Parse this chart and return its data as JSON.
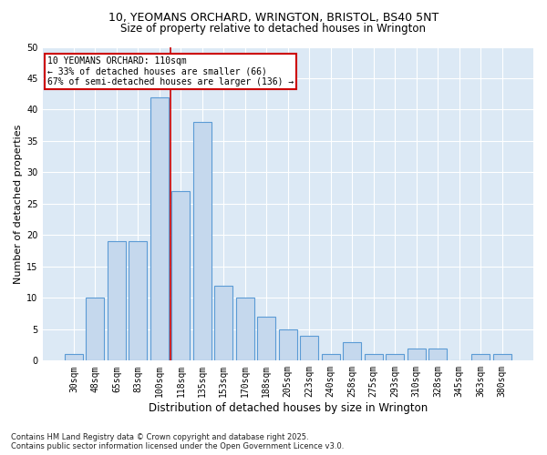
{
  "title1": "10, YEOMANS ORCHARD, WRINGTON, BRISTOL, BS40 5NT",
  "title2": "Size of property relative to detached houses in Wrington",
  "xlabel": "Distribution of detached houses by size in Wrington",
  "ylabel": "Number of detached properties",
  "categories": [
    "30sqm",
    "48sqm",
    "65sqm",
    "83sqm",
    "100sqm",
    "118sqm",
    "135sqm",
    "153sqm",
    "170sqm",
    "188sqm",
    "205sqm",
    "223sqm",
    "240sqm",
    "258sqm",
    "275sqm",
    "293sqm",
    "310sqm",
    "328sqm",
    "345sqm",
    "363sqm",
    "380sqm"
  ],
  "values": [
    1,
    10,
    19,
    19,
    42,
    27,
    38,
    12,
    10,
    7,
    5,
    4,
    1,
    3,
    1,
    1,
    2,
    2,
    0,
    1,
    1
  ],
  "bar_color": "#c5d8ed",
  "bar_edge_color": "#5b9bd5",
  "reference_line_color": "#cc0000",
  "annotation_text": "10 YEOMANS ORCHARD: 110sqm\n← 33% of detached houses are smaller (66)\n67% of semi-detached houses are larger (136) →",
  "annotation_box_color": "#cc0000",
  "fig_bg_color": "#ffffff",
  "axes_bg_color": "#dce9f5",
  "grid_color": "#ffffff",
  "ylim": [
    0,
    50
  ],
  "yticks": [
    0,
    5,
    10,
    15,
    20,
    25,
    30,
    35,
    40,
    45,
    50
  ],
  "footnote": "Contains HM Land Registry data © Crown copyright and database right 2025.\nContains public sector information licensed under the Open Government Licence v3.0.",
  "title1_fontsize": 9,
  "title2_fontsize": 8.5,
  "xlabel_fontsize": 8.5,
  "ylabel_fontsize": 8,
  "tick_fontsize": 7,
  "annotation_fontsize": 7,
  "footnote_fontsize": 6,
  "ref_line_x": 4.5
}
